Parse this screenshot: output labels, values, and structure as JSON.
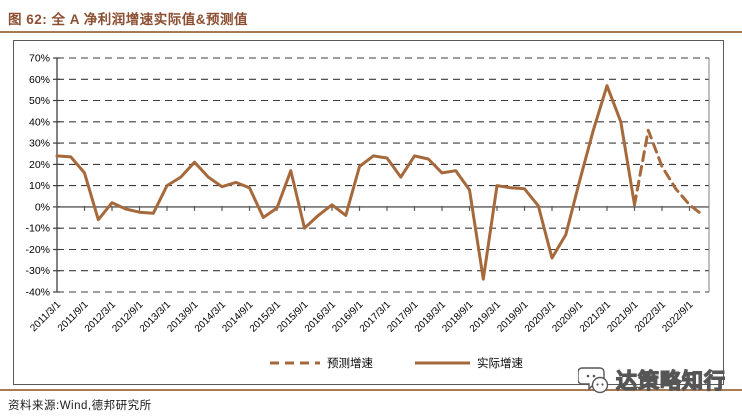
{
  "title": "图 62: 全 A 净利润增速实际值&预测值",
  "footer": {
    "source": "资料来源:Wind,德邦研究所"
  },
  "watermark": {
    "text": "达策略知行",
    "icon": "chat-bubbles-icon"
  },
  "colors": {
    "series_brown": "#A6693C",
    "title_brown": "#8C4F32",
    "rule_brown": "#A87B55",
    "grid_gray": "#3D3D3D",
    "axis_gray": "#595959"
  },
  "chart_data": {
    "type": "line",
    "title": "全 A 净利润增速实际值&预测值",
    "xlabel": "",
    "ylabel": "",
    "ylim": [
      -40,
      70
    ],
    "grid": "dashed-horizontal",
    "legend_position": "bottom-center",
    "y_ticks": [
      "70%",
      "60%",
      "50%",
      "40%",
      "30%",
      "20%",
      "10%",
      "0%",
      "-10%",
      "-20%",
      "-30%",
      "-40%"
    ],
    "x_tick_labels": [
      "2011/3/1",
      "2011/9/1",
      "2012/3/1",
      "2012/9/1",
      "2013/3/1",
      "2013/9/1",
      "2014/3/1",
      "2014/9/1",
      "2015/3/1",
      "2015/9/1",
      "2016/3/1",
      "2016/9/1",
      "2017/3/1",
      "2017/9/1",
      "2018/3/1",
      "2018/9/1",
      "2019/3/1",
      "2019/9/1",
      "2020/3/1",
      "2020/9/1",
      "2021/3/1",
      "2021/9/1",
      "2022/3/1",
      "2022/9/1"
    ],
    "legend": [
      {
        "label": "预测增速",
        "style": "dashed"
      },
      {
        "label": "实际增速",
        "style": "solid"
      }
    ],
    "series": [
      {
        "name": "实际增速",
        "style": "solid",
        "points": [
          {
            "date": "2011/3/1",
            "value": 24
          },
          {
            "date": "2011/6/1",
            "value": 23.5
          },
          {
            "date": "2011/9/1",
            "value": 16
          },
          {
            "date": "2011/12/1",
            "value": -6
          },
          {
            "date": "2012/3/1",
            "value": 2
          },
          {
            "date": "2012/6/1",
            "value": -1
          },
          {
            "date": "2012/9/1",
            "value": -2.5
          },
          {
            "date": "2012/12/1",
            "value": -3
          },
          {
            "date": "2013/3/1",
            "value": 10
          },
          {
            "date": "2013/6/1",
            "value": 14
          },
          {
            "date": "2013/9/1",
            "value": 21
          },
          {
            "date": "2013/12/1",
            "value": 14
          },
          {
            "date": "2014/3/1",
            "value": 9.5
          },
          {
            "date": "2014/6/1",
            "value": 11.5
          },
          {
            "date": "2014/9/1",
            "value": 9
          },
          {
            "date": "2014/12/1",
            "value": -5
          },
          {
            "date": "2015/3/1",
            "value": -0.5
          },
          {
            "date": "2015/6/1",
            "value": 17
          },
          {
            "date": "2015/9/1",
            "value": -10
          },
          {
            "date": "2015/12/1",
            "value": -4
          },
          {
            "date": "2016/3/1",
            "value": 1
          },
          {
            "date": "2016/6/1",
            "value": -4
          },
          {
            "date": "2016/9/1",
            "value": 19
          },
          {
            "date": "2016/12/1",
            "value": 24
          },
          {
            "date": "2017/3/1",
            "value": 23
          },
          {
            "date": "2017/6/1",
            "value": 14
          },
          {
            "date": "2017/9/1",
            "value": 24
          },
          {
            "date": "2017/12/1",
            "value": 22.5
          },
          {
            "date": "2018/3/1",
            "value": 16
          },
          {
            "date": "2018/6/1",
            "value": 17
          },
          {
            "date": "2018/9/1",
            "value": 8
          },
          {
            "date": "2018/12/1",
            "value": -34
          },
          {
            "date": "2019/3/1",
            "value": 10
          },
          {
            "date": "2019/6/1",
            "value": 9
          },
          {
            "date": "2019/9/1",
            "value": 8.5
          },
          {
            "date": "2019/12/1",
            "value": 0.5
          },
          {
            "date": "2020/3/1",
            "value": -24
          },
          {
            "date": "2020/6/1",
            "value": -13
          },
          {
            "date": "2020/9/1",
            "value": 12
          },
          {
            "date": "2020/12/1",
            "value": 36
          },
          {
            "date": "2021/3/1",
            "value": 57
          },
          {
            "date": "2021/6/1",
            "value": 40
          },
          {
            "date": "2021/9/1",
            "value": 1
          }
        ]
      },
      {
        "name": "预测增速",
        "style": "dashed",
        "points": [
          {
            "date": "2021/9/1",
            "value": 1
          },
          {
            "date": "2021/12/1",
            "value": 36
          },
          {
            "date": "2022/3/1",
            "value": 19
          },
          {
            "date": "2022/6/1",
            "value": 8.5
          },
          {
            "date": "2022/9/1",
            "value": 1
          },
          {
            "date": "2022/12/1",
            "value": -4
          }
        ]
      }
    ]
  }
}
